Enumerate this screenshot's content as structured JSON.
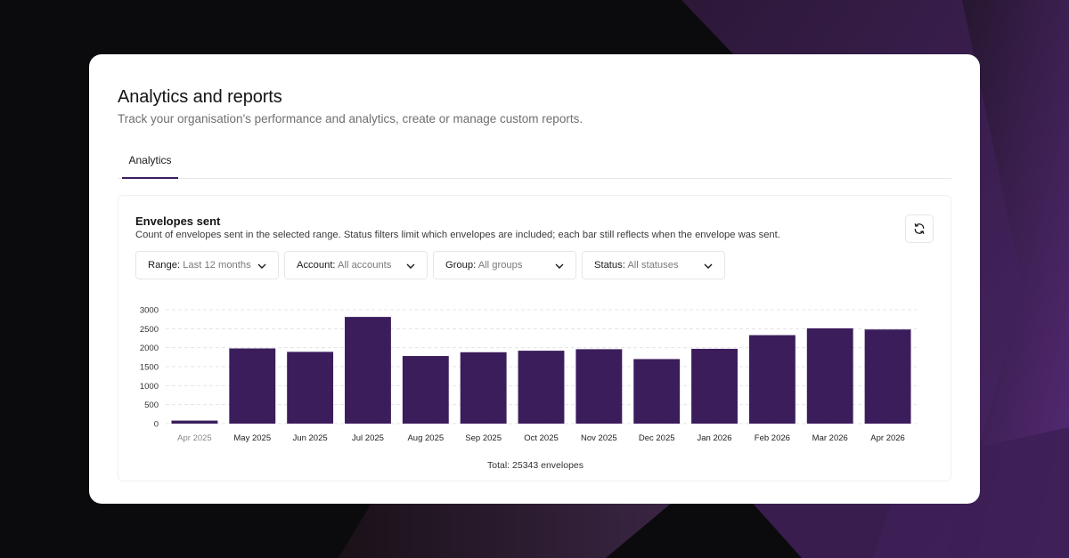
{
  "header": {
    "title": "Analytics and reports",
    "subtitle": "Track your organisation's performance and analytics, create or manage custom reports."
  },
  "tabs": [
    {
      "label": "Analytics",
      "active": true
    }
  ],
  "panel": {
    "title": "Envelopes sent",
    "description": "Count of envelopes sent in the selected range. Status filters limit which envelopes are included; each bar still reflects when the envelope was sent.",
    "refresh_icon": "refresh-icon"
  },
  "filters": [
    {
      "label": "Range:",
      "value": "Last 12 months"
    },
    {
      "label": "Account:",
      "value": "All accounts"
    },
    {
      "label": "Group:",
      "value": "All groups"
    },
    {
      "label": "Status:",
      "value": "All statuses"
    }
  ],
  "colors": {
    "bar": "#3b1d5c",
    "accent": "#3b1d5c",
    "background": "#0b0b0d"
  },
  "chart_data": {
    "type": "bar",
    "title": "Envelopes sent",
    "categories": [
      "Apr 2025",
      "May 2025",
      "Jun 2025",
      "Jul 2025",
      "Aug 2025",
      "Sep 2025",
      "Oct 2025",
      "Nov 2025",
      "Dec 2025",
      "Jan 2026",
      "Feb 2026",
      "Mar 2026",
      "Apr 2026"
    ],
    "values": [
      80,
      1980,
      1890,
      2810,
      1780,
      1880,
      1920,
      1960,
      1700,
      1970,
      2330,
      2510,
      2480
    ],
    "y_ticks": [
      0,
      500,
      1000,
      1500,
      2000,
      2500,
      3000
    ],
    "ylim": [
      0,
      3000
    ],
    "grid": true,
    "total_label": "Total: 25343 envelopes"
  }
}
